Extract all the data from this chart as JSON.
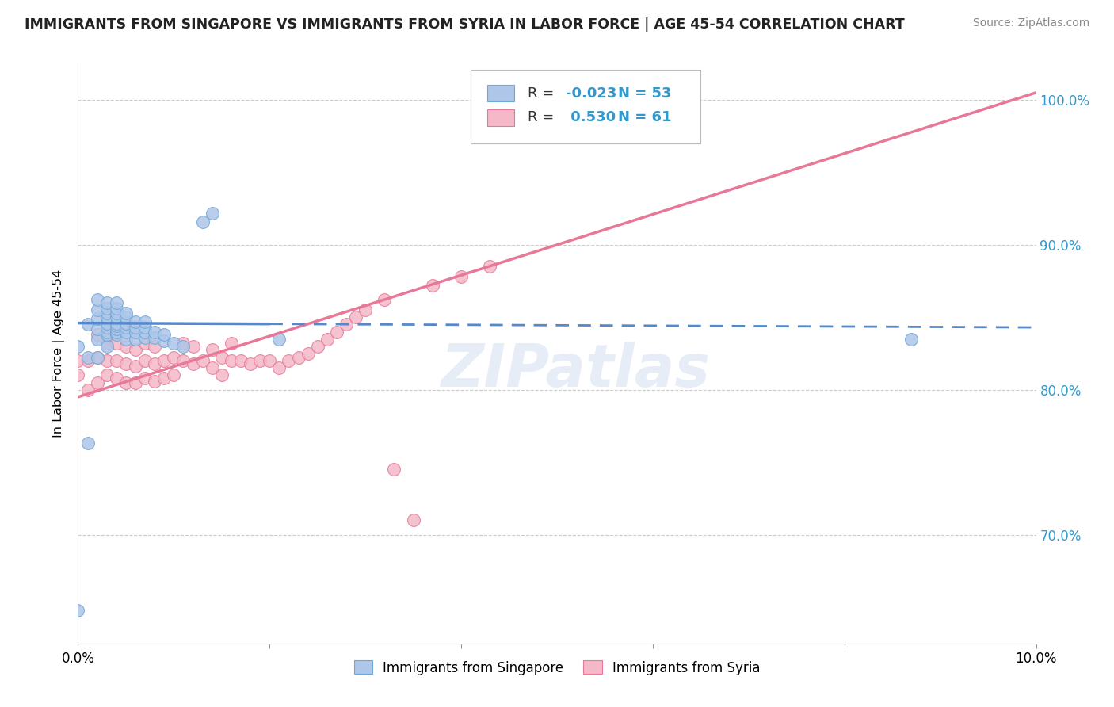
{
  "title": "IMMIGRANTS FROM SINGAPORE VS IMMIGRANTS FROM SYRIA IN LABOR FORCE | AGE 45-54 CORRELATION CHART",
  "source": "Source: ZipAtlas.com",
  "ylabel": "In Labor Force | Age 45-54",
  "xlim": [
    0.0,
    0.1
  ],
  "ylim": [
    0.625,
    1.025
  ],
  "yticks": [
    0.7,
    0.8,
    0.9,
    1.0
  ],
  "ytick_labels": [
    "70.0%",
    "80.0%",
    "90.0%",
    "100.0%"
  ],
  "xticks": [
    0.0,
    0.02,
    0.04,
    0.06,
    0.08,
    0.1
  ],
  "xtick_labels": [
    "0.0%",
    "",
    "",
    "",
    "",
    "10.0%"
  ],
  "singapore_color": "#aec6e8",
  "singapore_edge": "#6fa8d8",
  "syria_color": "#f4b8c8",
  "syria_edge": "#e87898",
  "singapore_R": -0.023,
  "singapore_N": 53,
  "syria_R": 0.53,
  "syria_N": 61,
  "singapore_line_color": "#5588cc",
  "syria_line_color": "#e87898",
  "watermark": "ZIPatlas",
  "sg_line_x0": 0.0,
  "sg_line_y0": 0.846,
  "sg_line_x1": 0.1,
  "sg_line_y1": 0.843,
  "sy_line_x0": 0.0,
  "sy_line_y0": 0.795,
  "sy_line_x1": 0.1,
  "sy_line_y1": 1.005,
  "singapore_scatter_x": [
    0.0,
    0.0,
    0.001,
    0.001,
    0.001,
    0.002,
    0.002,
    0.002,
    0.002,
    0.002,
    0.002,
    0.003,
    0.003,
    0.003,
    0.003,
    0.003,
    0.003,
    0.003,
    0.003,
    0.003,
    0.004,
    0.004,
    0.004,
    0.004,
    0.004,
    0.004,
    0.004,
    0.004,
    0.004,
    0.005,
    0.005,
    0.005,
    0.005,
    0.005,
    0.005,
    0.006,
    0.006,
    0.006,
    0.006,
    0.007,
    0.007,
    0.007,
    0.007,
    0.008,
    0.008,
    0.009,
    0.009,
    0.01,
    0.011,
    0.013,
    0.014,
    0.021,
    0.087
  ],
  "singapore_scatter_y": [
    0.648,
    0.83,
    0.763,
    0.822,
    0.845,
    0.822,
    0.835,
    0.842,
    0.849,
    0.855,
    0.862,
    0.83,
    0.838,
    0.84,
    0.843,
    0.846,
    0.85,
    0.853,
    0.856,
    0.86,
    0.838,
    0.84,
    0.842,
    0.844,
    0.846,
    0.85,
    0.853,
    0.856,
    0.86,
    0.835,
    0.84,
    0.843,
    0.846,
    0.85,
    0.853,
    0.835,
    0.84,
    0.843,
    0.847,
    0.836,
    0.84,
    0.843,
    0.847,
    0.836,
    0.84,
    0.834,
    0.838,
    0.832,
    0.83,
    0.916,
    0.922,
    0.835,
    0.835
  ],
  "syria_scatter_x": [
    0.0,
    0.0,
    0.001,
    0.001,
    0.002,
    0.002,
    0.002,
    0.003,
    0.003,
    0.003,
    0.003,
    0.004,
    0.004,
    0.004,
    0.005,
    0.005,
    0.005,
    0.006,
    0.006,
    0.006,
    0.007,
    0.007,
    0.007,
    0.008,
    0.008,
    0.008,
    0.009,
    0.009,
    0.01,
    0.01,
    0.011,
    0.011,
    0.012,
    0.012,
    0.013,
    0.014,
    0.014,
    0.015,
    0.015,
    0.016,
    0.016,
    0.017,
    0.018,
    0.019,
    0.02,
    0.021,
    0.022,
    0.023,
    0.024,
    0.025,
    0.026,
    0.027,
    0.028,
    0.029,
    0.03,
    0.032,
    0.033,
    0.035,
    0.037,
    0.04,
    0.043
  ],
  "syria_scatter_y": [
    0.82,
    0.81,
    0.8,
    0.82,
    0.805,
    0.822,
    0.838,
    0.81,
    0.82,
    0.832,
    0.842,
    0.808,
    0.82,
    0.832,
    0.805,
    0.818,
    0.83,
    0.805,
    0.816,
    0.828,
    0.808,
    0.82,
    0.832,
    0.806,
    0.818,
    0.83,
    0.808,
    0.82,
    0.81,
    0.822,
    0.82,
    0.832,
    0.818,
    0.83,
    0.82,
    0.815,
    0.828,
    0.81,
    0.822,
    0.82,
    0.832,
    0.82,
    0.818,
    0.82,
    0.82,
    0.815,
    0.82,
    0.822,
    0.825,
    0.83,
    0.835,
    0.84,
    0.845,
    0.85,
    0.855,
    0.862,
    0.745,
    0.71,
    0.872,
    0.878,
    0.885
  ]
}
